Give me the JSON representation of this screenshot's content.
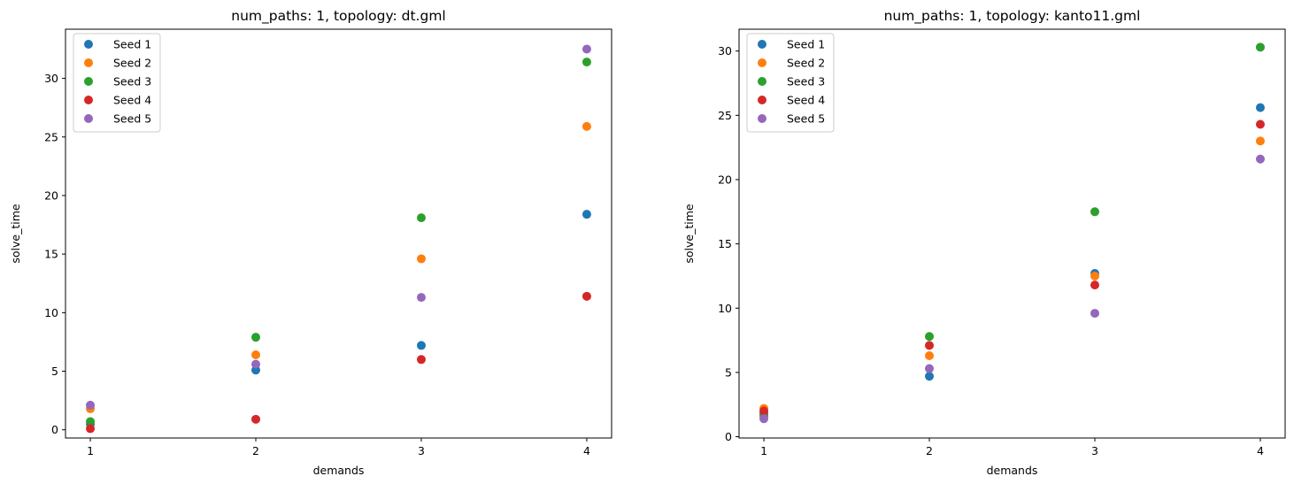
{
  "chart_data": [
    {
      "type": "scatter",
      "title": "num_paths: 1, topology: dt.gml",
      "xlabel": "demands",
      "ylabel": "solve_time",
      "x_ticks": [
        1,
        2,
        3,
        4
      ],
      "y_ticks": [
        0,
        5,
        10,
        15,
        20,
        25,
        30
      ],
      "xlim": [
        0.85,
        4.15
      ],
      "ylim": [
        -0.7,
        34.2
      ],
      "grid": false,
      "legend_placement": "top-left",
      "series": [
        {
          "name": "Seed 1",
          "color": "#1f77b4",
          "points": [
            [
              1,
              0.5
            ],
            [
              2,
              5.1
            ],
            [
              3,
              7.2
            ],
            [
              4,
              18.4
            ]
          ]
        },
        {
          "name": "Seed 2",
          "color": "#ff7f0e",
          "points": [
            [
              1,
              1.8
            ],
            [
              2,
              6.4
            ],
            [
              3,
              14.6
            ],
            [
              4,
              25.9
            ]
          ]
        },
        {
          "name": "Seed 3",
          "color": "#2ca02c",
          "points": [
            [
              1,
              0.7
            ],
            [
              2,
              7.9
            ],
            [
              3,
              18.1
            ],
            [
              4,
              31.4
            ]
          ]
        },
        {
          "name": "Seed 4",
          "color": "#d62728",
          "points": [
            [
              1,
              0.1
            ],
            [
              2,
              0.9
            ],
            [
              3,
              6.0
            ],
            [
              4,
              11.4
            ]
          ]
        },
        {
          "name": "Seed 5",
          "color": "#9467bd",
          "points": [
            [
              1,
              2.1
            ],
            [
              2,
              5.6
            ],
            [
              3,
              11.3
            ],
            [
              4,
              32.5
            ]
          ]
        }
      ]
    },
    {
      "type": "scatter",
      "title": "num_paths: 1, topology: kanto11.gml",
      "xlabel": "demands",
      "ylabel": "solve_time",
      "x_ticks": [
        1,
        2,
        3,
        4
      ],
      "y_ticks": [
        0,
        5,
        10,
        15,
        20,
        25,
        30
      ],
      "xlim": [
        0.85,
        4.15
      ],
      "ylim": [
        -0.1,
        31.7
      ],
      "grid": false,
      "legend_placement": "top-left",
      "series": [
        {
          "name": "Seed 1",
          "color": "#1f77b4",
          "points": [
            [
              1,
              1.8
            ],
            [
              2,
              4.7
            ],
            [
              3,
              12.7
            ],
            [
              4,
              25.6
            ]
          ]
        },
        {
          "name": "Seed 2",
          "color": "#ff7f0e",
          "points": [
            [
              1,
              2.2
            ],
            [
              2,
              6.3
            ],
            [
              3,
              12.5
            ],
            [
              4,
              23.0
            ]
          ]
        },
        {
          "name": "Seed 3",
          "color": "#2ca02c",
          "points": [
            [
              1,
              1.6
            ],
            [
              2,
              7.8
            ],
            [
              3,
              17.5
            ],
            [
              4,
              30.3
            ]
          ]
        },
        {
          "name": "Seed 4",
          "color": "#d62728",
          "points": [
            [
              1,
              2.0
            ],
            [
              2,
              7.1
            ],
            [
              3,
              11.8
            ],
            [
              4,
              24.3
            ]
          ]
        },
        {
          "name": "Seed 5",
          "color": "#9467bd",
          "points": [
            [
              1,
              1.4
            ],
            [
              2,
              5.3
            ],
            [
              3,
              9.6
            ],
            [
              4,
              21.6
            ]
          ]
        }
      ]
    }
  ]
}
